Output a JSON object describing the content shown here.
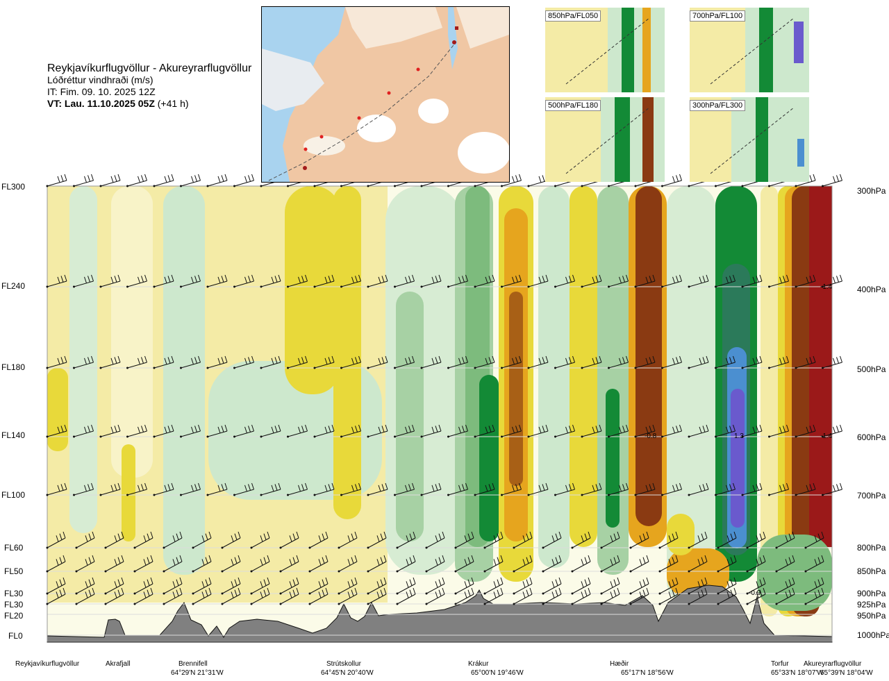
{
  "header": {
    "route_title": "Reykjavíkurflugvöllur - Akureyrarflugvöllur",
    "parameter": "Lóðréttur vindhraði (m/s)",
    "issue_time": "IT: Fim. 09. 10. 2025 12Z",
    "valid_time_label": "VT: Lau. 11.10.2025 05Z",
    "lead_time": "(+41 h)"
  },
  "route_map": {
    "waypoints": [
      "Reykjavíkurflugvöllur",
      "Akrafjall",
      "Brennifell",
      "Strútskollur",
      "Krákur",
      "Hæðir",
      "Torfur",
      "Akureyrarflugvöllur"
    ]
  },
  "thumbnails": [
    "850hPa/FL050",
    "700hPa/FL100",
    "500hPa/FL180",
    "300hPa/FL300"
  ],
  "levels": [
    {
      "fl": "FL300",
      "hpa": "300hPa"
    },
    {
      "fl": "FL240",
      "hpa": "400hPa"
    },
    {
      "fl": "FL180",
      "hpa": "500hPa"
    },
    {
      "fl": "FL140",
      "hpa": "600hPa"
    },
    {
      "fl": "FL100",
      "hpa": "700hPa"
    },
    {
      "fl": "FL60",
      "hpa": "800hPa"
    },
    {
      "fl": "FL50",
      "hpa": "850hPa"
    },
    {
      "fl": "FL30",
      "hpa": "900hPa"
    },
    {
      "fl": "FL30",
      "hpa": "925hPa"
    },
    {
      "fl": "FL20",
      "hpa": "950hPa"
    },
    {
      "fl": "FL0",
      "hpa": "1000hPa"
    }
  ],
  "locations": [
    {
      "name": "Reykjavíkurflugvöllur",
      "coord": ""
    },
    {
      "name": "Akrafjall",
      "coord": ""
    },
    {
      "name": "Brennifell",
      "coord": "64°29'N 21°31'W"
    },
    {
      "name": "Strútskollur",
      "coord": "64°45'N 20°40'W"
    },
    {
      "name": "Krákur",
      "coord": "65°00'N 19°46'W"
    },
    {
      "name": "Hæðir",
      "coord": "65°17'N 18°56'W"
    },
    {
      "name": "Torfur",
      "coord": "65°33'N 18°07'W"
    },
    {
      "name": "Akureyrarflugvöllur",
      "coord": "65°39'N 18°04'W"
    }
  ],
  "chart_data": {
    "type": "heatmap",
    "title": "Lóðréttur vindhraði (m/s)",
    "xlabel": "",
    "ylabel": "",
    "x_categories": [
      "Reykjavíkurflugvöllur",
      "Akrafjall",
      "Brennifell",
      "Strútskollur",
      "Krákur",
      "Hæðir",
      "Torfur",
      "Akureyrarflugvöllur"
    ],
    "y_levels_hpa": [
      300,
      400,
      500,
      600,
      700,
      800,
      850,
      900,
      925,
      950,
      1000
    ],
    "data_labels": [
      {
        "level_hpa": 400,
        "location": "Akureyrarflugvöllur",
        "text": "-1.4"
      },
      {
        "level_hpa": 600,
        "location": "Hæðir",
        "text": "-0.8"
      },
      {
        "level_hpa": 600,
        "location": "Hæðir",
        "text": "1.3"
      },
      {
        "level_hpa": 600,
        "location": "Akureyrarflugvöllur",
        "text": "-1.4"
      },
      {
        "level_hpa": 900,
        "location": "Torfur",
        "text": "-0.9"
      }
    ],
    "colors": {
      "strong_up": "#6a5acd",
      "up3": "#3b8fb0",
      "up2": "#138a36",
      "up1": "#7dbb7d",
      "up_weak": "#cde8cd",
      "neutral": "#fbfbe8",
      "down_weak": "#f4eba6",
      "down1": "#e8d93a",
      "down2": "#e6a51e",
      "down3": "#8a3a12",
      "strong_down": "#9b1919",
      "terrain": "#808080"
    }
  }
}
